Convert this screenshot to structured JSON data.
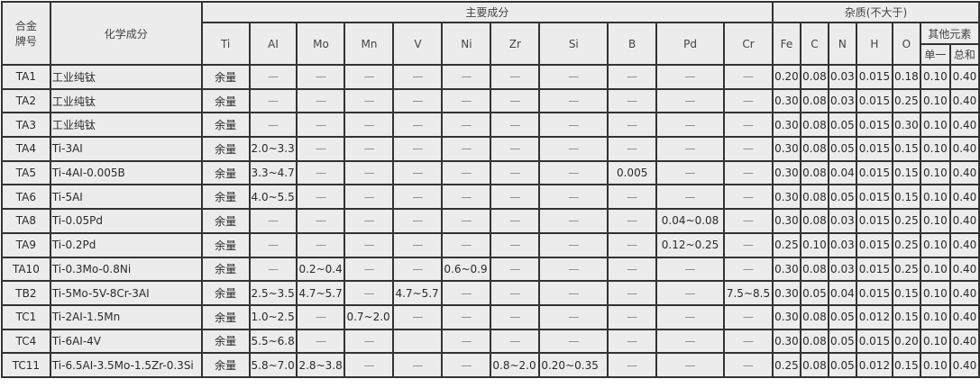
{
  "header": {
    "grade": "合金牌号",
    "grade_line1": "合金",
    "grade_line2": "牌号",
    "composition": "化学成分",
    "main_components": "主要成分",
    "impurities": "杂质(不大于)",
    "other_elements": "其他元素",
    "single": "单一",
    "total": "总和",
    "main_elements": [
      "Ti",
      "AI",
      "Mo",
      "Mn",
      "V",
      "Ni",
      "Zr",
      "Si",
      "B",
      "Pd",
      "Cr"
    ],
    "impurity_elements": [
      "Fe",
      "C",
      "N",
      "H",
      "O"
    ]
  },
  "rows": [
    {
      "grade": "TA1",
      "name": "工业纯钛",
      "main": [
        "余量",
        "—",
        "—",
        "—",
        "—",
        "—",
        "—",
        "—",
        "—",
        "—",
        "—"
      ],
      "imp": [
        "0.20",
        "0.08",
        "0.03",
        "0.015",
        "0.18",
        "0.10",
        "0.40"
      ]
    },
    {
      "grade": "TA2",
      "name": "工业纯钛",
      "main": [
        "余量",
        "—",
        "—",
        "—",
        "—",
        "—",
        "—",
        "—",
        "—",
        "—",
        "—"
      ],
      "imp": [
        "0.30",
        "0.08",
        "0.03",
        "0.015",
        "0.25",
        "0.10",
        "0.40"
      ]
    },
    {
      "grade": "TA3",
      "name": "工业纯钛",
      "main": [
        "余量",
        "—",
        "—",
        "—",
        "—",
        "—",
        "—",
        "—",
        "—",
        "—",
        "—"
      ],
      "imp": [
        "0.30",
        "0.08",
        "0.05",
        "0.015",
        "0.30",
        "0.10",
        "0.40"
      ]
    },
    {
      "grade": "TA4",
      "name": "Ti-3AI",
      "main": [
        "余量",
        "2.0~3.3",
        "—",
        "—",
        "—",
        "—",
        "—",
        "—",
        "—",
        "—",
        "—"
      ],
      "imp": [
        "0.30",
        "0.08",
        "0.05",
        "0.015",
        "0.15",
        "0.10",
        "0.40"
      ]
    },
    {
      "grade": "TA5",
      "name": "Ti-4AI-0.005B",
      "main": [
        "余量",
        "3.3~4.7",
        "—",
        "—",
        "—",
        "—",
        "—",
        "—",
        "0.005",
        "—",
        "—"
      ],
      "imp": [
        "0.30",
        "0.08",
        "0.04",
        "0.015",
        "0.15",
        "0.10",
        "0.40"
      ]
    },
    {
      "grade": "TA6",
      "name": "Ti-5AI",
      "main": [
        "余量",
        "4.0~5.5",
        "—",
        "—",
        "—",
        "—",
        "—",
        "—",
        "—",
        "—",
        "—"
      ],
      "imp": [
        "0.30",
        "0.08",
        "0.05",
        "0.015",
        "0.15",
        "0.10",
        "0.40"
      ]
    },
    {
      "grade": "TA8",
      "name": "Ti-0.05Pd",
      "main": [
        "余量",
        "—",
        "—",
        "—",
        "—",
        "—",
        "—",
        "—",
        "—",
        "0.04~0.08",
        "—"
      ],
      "imp": [
        "0.30",
        "0.08",
        "0.03",
        "0.015",
        "0.25",
        "0.10",
        "0.40"
      ]
    },
    {
      "grade": "TA9",
      "name": "Ti-0.2Pd",
      "main": [
        "余量",
        "—",
        "—",
        "—",
        "—",
        "—",
        "—",
        "—",
        "—",
        "0.12~0.25",
        "—"
      ],
      "imp": [
        "0.25",
        "0.10",
        "0.03",
        "0.015",
        "0.25",
        "0.10",
        "0.40"
      ]
    },
    {
      "grade": "TA10",
      "name": "Ti-0.3Mo-0.8Ni",
      "main": [
        "余量",
        "—",
        "0.2~0.4",
        "—",
        "—",
        "0.6~0.9",
        "—",
        "—",
        "—",
        "—",
        "—"
      ],
      "imp": [
        "0.30",
        "0.08",
        "0.03",
        "0.015",
        "0.25",
        "0.10",
        "0.40"
      ]
    },
    {
      "grade": "TB2",
      "name": "Ti-5Mo-5V-8Cr-3AI",
      "main": [
        "余量",
        "2.5~3.5",
        "4.7~5.7",
        "—",
        "4.7~5.7",
        "—",
        "—",
        "—",
        "—",
        "—",
        "7.5~8.5"
      ],
      "imp": [
        "0.30",
        "0.05",
        "0.04",
        "0.015",
        "0.15",
        "0.10",
        "0.40"
      ]
    },
    {
      "grade": "TC1",
      "name": "Ti-2AI-1.5Mn",
      "main": [
        "余量",
        "1.0~2.5",
        "—",
        "0.7~2.0",
        "—",
        "—",
        "—",
        "—",
        "—",
        "—",
        "—"
      ],
      "imp": [
        "0.30",
        "0.08",
        "0.05",
        "0.012",
        "0.15",
        "0.10",
        "0.40"
      ]
    },
    {
      "grade": "TC4",
      "name": "Ti-6AI-4V",
      "main": [
        "余量",
        "5.5~6.8",
        "—",
        "—",
        "",
        "—",
        "—",
        "—",
        "—",
        "—",
        "—"
      ],
      "imp": [
        "0.30",
        "0.08",
        "0.05",
        "0.015",
        "0.20",
        "0.10",
        "0.40"
      ]
    },
    {
      "grade": "TC11",
      "name": "Ti-6.5AI-3.5Mo-1.5Zr-0.3Si",
      "main": [
        "余量",
        "5.8~7.0",
        "2.8~3.8",
        "—",
        "—",
        "—",
        "0.8~2.0",
        "0.20~0.35",
        "—",
        "—",
        "—"
      ],
      "imp": [
        "0.25",
        "0.08",
        "0.05",
        "0.012",
        "0.15",
        "0.10",
        "0.40"
      ]
    }
  ]
}
